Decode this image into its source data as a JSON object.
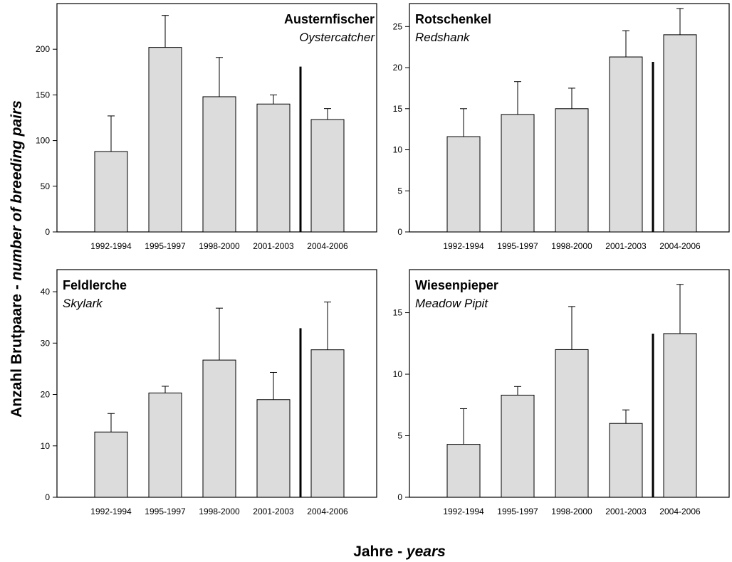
{
  "figure": {
    "ylabel_main": "Anzahl Brutpaare - ",
    "ylabel_italic": "number of breeding pairs",
    "xlabel_main": "Jahre - ",
    "xlabel_italic": "years"
  },
  "chart_data": [
    {
      "type": "bar",
      "title": "Austernfischer",
      "subtitle": "Oystercatcher",
      "title_position": "top-right",
      "categories": [
        "1992-1994",
        "1995-1997",
        "1998-2000",
        "2001-2003",
        "2004-2006"
      ],
      "values": [
        88,
        202,
        148,
        140,
        123
      ],
      "error_upper": [
        127,
        237,
        191,
        150,
        135
      ],
      "ylim": [
        0,
        250
      ],
      "yticks": [
        0,
        50,
        100,
        150,
        200
      ],
      "separator_after_index": 3,
      "separator_top": 181,
      "grid": false
    },
    {
      "type": "bar",
      "title": "Rotschenkel",
      "subtitle": "Redshank",
      "title_position": "top-left",
      "categories": [
        "1992-1994",
        "1995-1997",
        "1998-2000",
        "2001-2003",
        "2004-2006"
      ],
      "values": [
        11.6,
        14.3,
        15.0,
        21.3,
        24.0
      ],
      "error_upper": [
        15.0,
        18.3,
        17.5,
        24.5,
        27.2
      ],
      "ylim": [
        0,
        27.8
      ],
      "yticks": [
        0,
        5,
        10,
        15,
        20,
        25
      ],
      "separator_after_index": 3,
      "separator_top": 20.7,
      "grid": false
    },
    {
      "type": "bar",
      "title": "Feldlerche",
      "subtitle": "Skylark",
      "title_position": "top-left",
      "categories": [
        "1992-1994",
        "1995-1997",
        "1998-2000",
        "2001-2003",
        "2004-2006"
      ],
      "values": [
        12.7,
        20.3,
        26.7,
        19.0,
        28.7
      ],
      "error_upper": [
        16.3,
        21.6,
        36.8,
        24.3,
        38.0
      ],
      "ylim": [
        0,
        44.3
      ],
      "yticks": [
        0,
        10,
        20,
        30,
        40
      ],
      "separator_after_index": 3,
      "separator_top": 32.9,
      "grid": false
    },
    {
      "type": "bar",
      "title": "Wiesenpieper",
      "subtitle": "Meadow Pipit",
      "title_position": "top-left",
      "categories": [
        "1992-1994",
        "1995-1997",
        "1998-2000",
        "2001-2003",
        "2004-2006"
      ],
      "values": [
        4.3,
        8.3,
        12.0,
        6.0,
        13.3
      ],
      "error_upper": [
        7.2,
        9.0,
        15.5,
        7.1,
        17.3
      ],
      "ylim": [
        0,
        18.5
      ],
      "yticks": [
        0,
        5,
        10,
        15
      ],
      "separator_after_index": 3,
      "separator_top": 13.3,
      "grid": false
    }
  ]
}
